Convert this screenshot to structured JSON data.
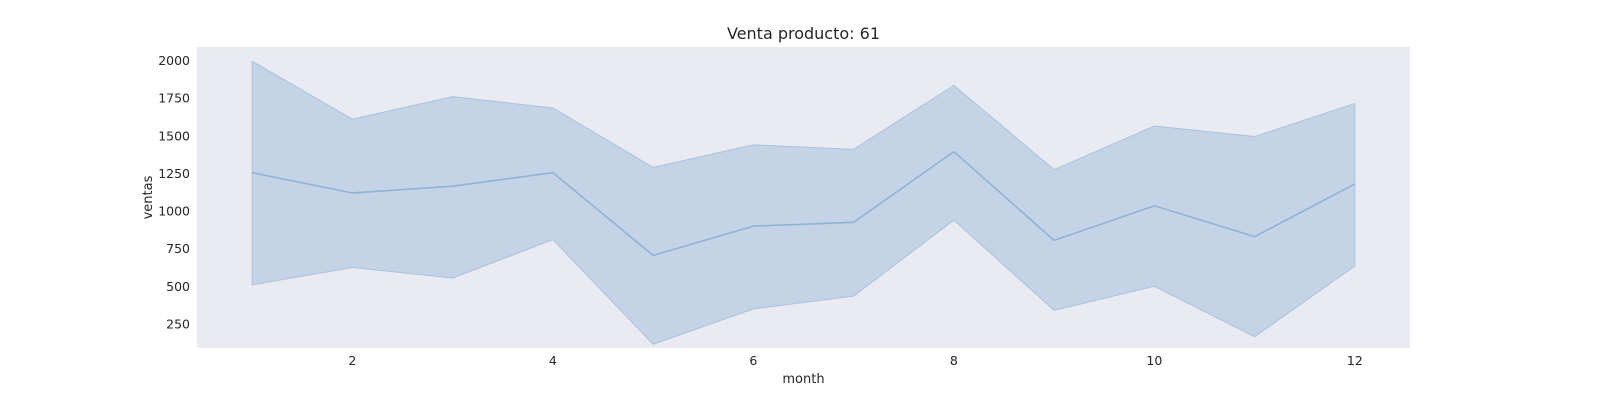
{
  "chart_data": {
    "type": "line",
    "title": "Venta producto: 61",
    "xlabel": "month",
    "ylabel": "ventas",
    "x": [
      1,
      2,
      3,
      4,
      5,
      6,
      7,
      8,
      9,
      10,
      11,
      12
    ],
    "series": [
      {
        "values": [
          1255,
          1120,
          1165,
          1255,
          705,
          900,
          925,
          1395,
          805,
          1035,
          830,
          1180
        ],
        "lower": [
          510,
          625,
          555,
          810,
          115,
          350,
          435,
          940,
          340,
          500,
          165,
          635
        ],
        "upper": [
          1995,
          1610,
          1760,
          1685,
          1290,
          1440,
          1410,
          1835,
          1275,
          1565,
          1495,
          1715
        ]
      }
    ],
    "xlim": [
      0.45,
      12.55
    ],
    "ylim": [
      90,
      2090
    ],
    "xticks": [
      2,
      4,
      6,
      8,
      10,
      12
    ],
    "yticks": [
      250,
      500,
      750,
      1000,
      1250,
      1500,
      1750,
      2000
    ],
    "grid": false,
    "colors": {
      "plot_background": "#eaeaf2",
      "band_fill": "#9ebcd9",
      "line": "#8fb3d4",
      "band_edge": "#a9c3dd"
    }
  }
}
